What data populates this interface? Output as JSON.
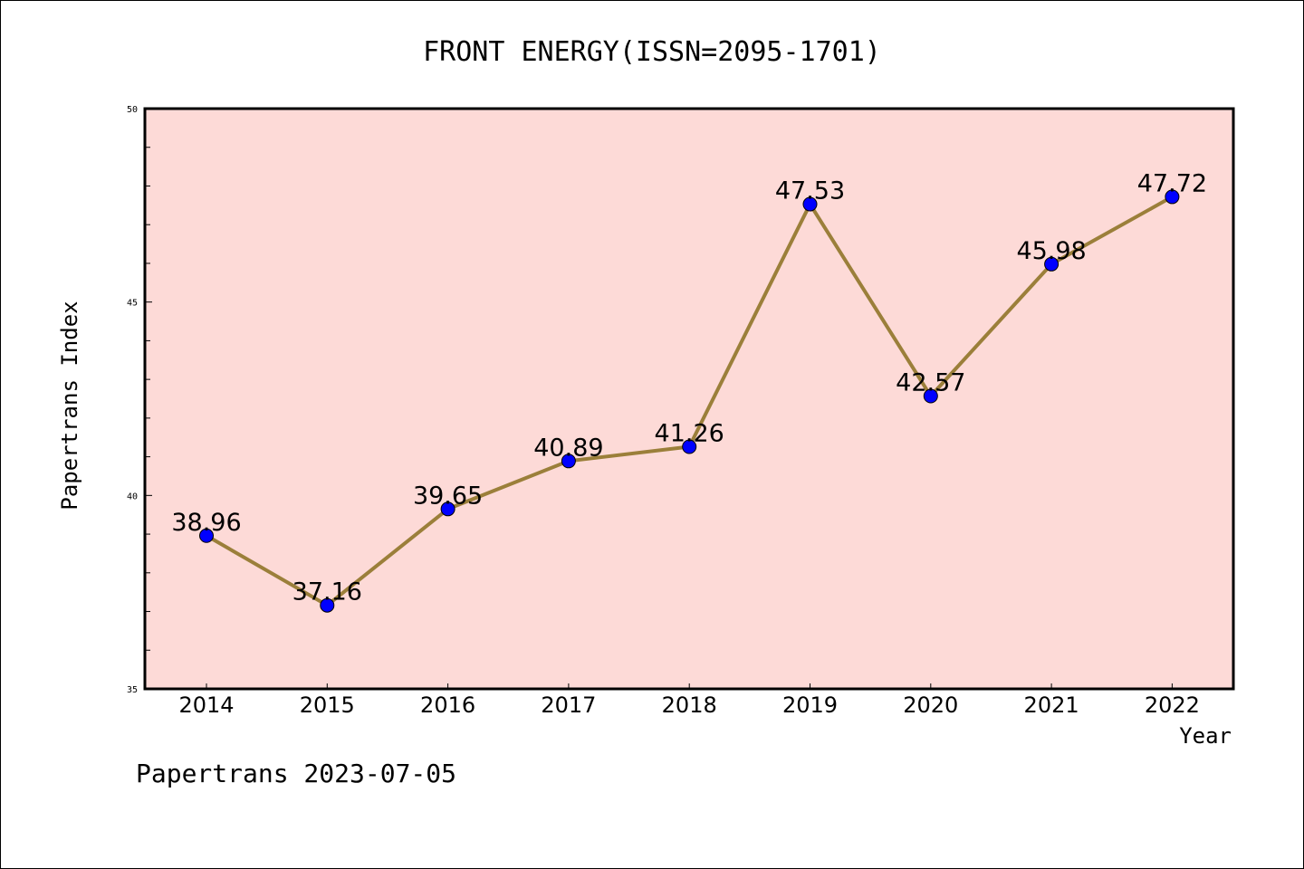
{
  "chart_data": {
    "type": "line",
    "title": "FRONT ENERGY(ISSN=2095-1701)",
    "xlabel": "Year",
    "ylabel": "Papertrans Index",
    "categories": [
      "2014",
      "2015",
      "2016",
      "2017",
      "2018",
      "2019",
      "2020",
      "2021",
      "2022"
    ],
    "series": [
      {
        "values": [
          38.96,
          37.16,
          39.65,
          40.89,
          41.26,
          47.53,
          42.57,
          45.98,
          47.72
        ],
        "data_labels": [
          "38.96",
          "37.16",
          "39.65",
          "40.89",
          "41.26",
          "47.53",
          "42.57",
          "45.98",
          "47.72"
        ]
      }
    ],
    "ylim": [
      35,
      50
    ],
    "yticks": [
      "35",
      "40",
      "45",
      "50"
    ],
    "grid": false,
    "legend": "none",
    "colors": {
      "plot_background": "#fddad7",
      "line": "#9b7f3a",
      "marker": "#0000ff"
    }
  },
  "footer": "Papertrans 2023-07-05"
}
